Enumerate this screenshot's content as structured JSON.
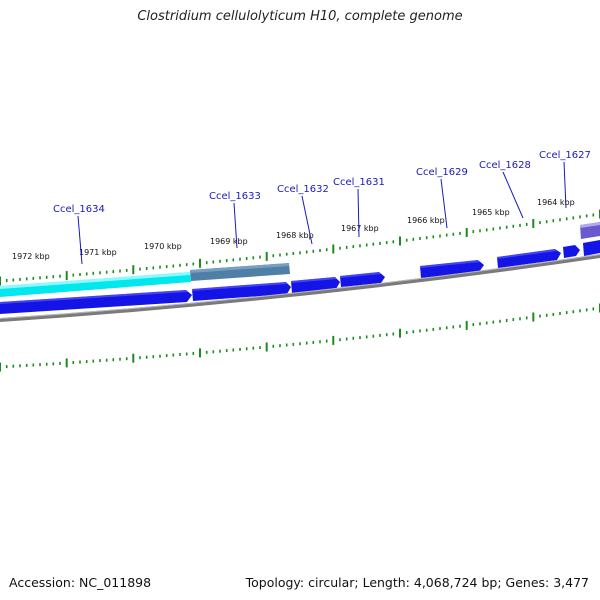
{
  "title": "Clostridium cellulolyticum H10, complete genome",
  "footer": {
    "accession": "Accession: NC_011898",
    "summary": "Topology: circular; Length: 4,068,724 bp; Genes: 3,477"
  },
  "colors": {
    "tick": "#1e8a1e",
    "forward_gene": "#1414e6",
    "highlight_gene": "#00e5ee",
    "gray_gene": "#4f7fa6",
    "purple_gene": "#6a5acd",
    "backbone": "#7a7a7a",
    "label": "#1a1ab8"
  },
  "kbp_labels": [
    "1972 kbp",
    "1971 kbp",
    "1970 kbp",
    "1969 kbp",
    "1968 kbp",
    "1967 kbp",
    "1966 kbp",
    "1965 kbp",
    "1964 kbp"
  ],
  "gene_labels": [
    "Ccel_1634",
    "Ccel_1633",
    "Ccel_1632",
    "Ccel_1631",
    "Ccel_1629",
    "Ccel_1628",
    "Ccel_1627"
  ]
}
